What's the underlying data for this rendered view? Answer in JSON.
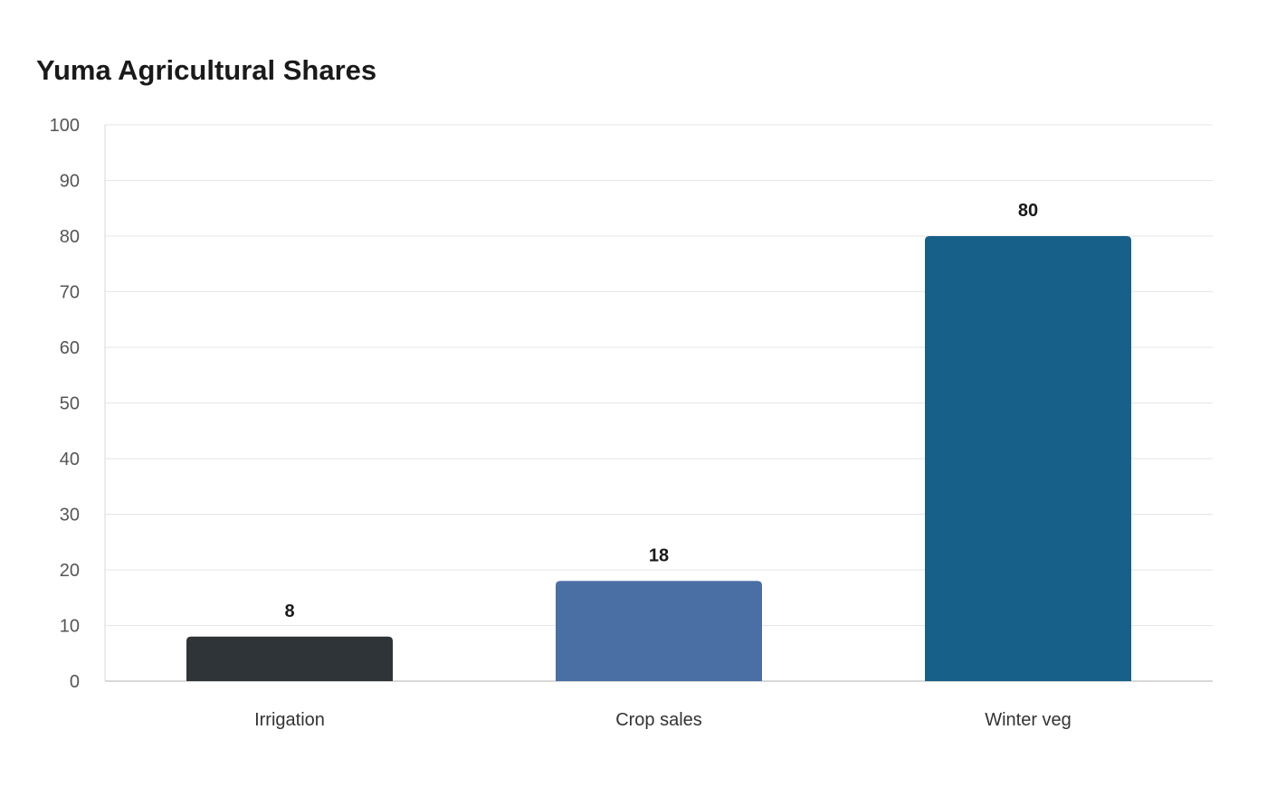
{
  "chart_data": {
    "type": "bar",
    "title": "Yuma Agricultural Shares",
    "xlabel": "",
    "ylabel": "",
    "categories": [
      "Irrigation",
      "Crop sales",
      "Winter veg"
    ],
    "values": [
      8,
      18,
      80
    ],
    "colors": [
      "#2f3438",
      "#4a6fa5",
      "#176089"
    ],
    "ylim": [
      0,
      100
    ],
    "yticks": [
      0,
      10,
      20,
      30,
      40,
      50,
      60,
      70,
      80,
      90,
      100
    ],
    "grid": true,
    "legend": "none"
  }
}
